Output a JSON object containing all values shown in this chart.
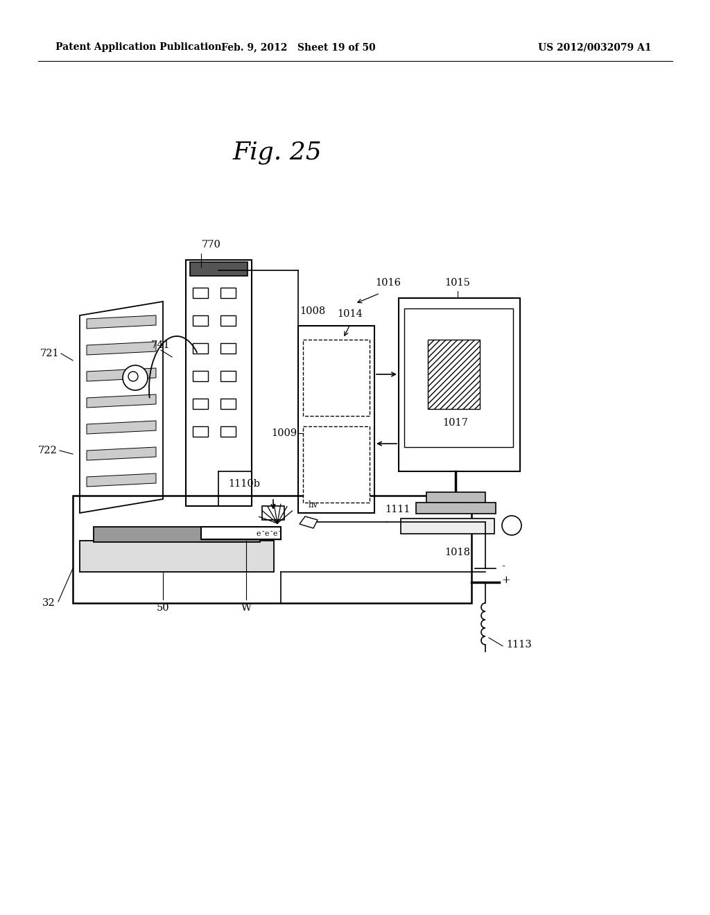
{
  "title": "Fig. 25",
  "header_left": "Patent Application Publication",
  "header_mid": "Feb. 9, 2012   Sheet 19 of 50",
  "header_right": "US 2012/0032079 A1",
  "background_color": "#ffffff",
  "line_color": "#000000"
}
